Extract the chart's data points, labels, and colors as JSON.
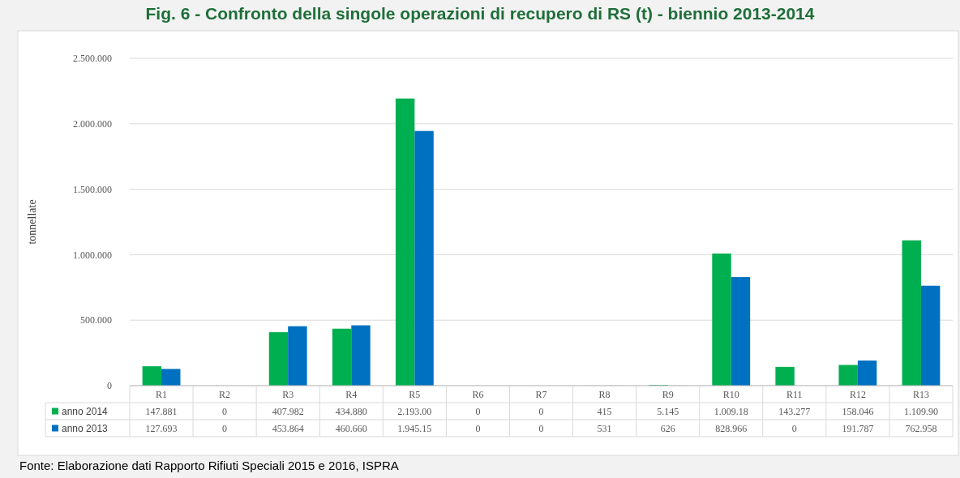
{
  "chart_data": {
    "type": "bar",
    "title": "Fig. 6 - Confronto della singole operazioni di recupero di RS (t) - biennio 2013-2014",
    "ylabel": "tonnellate",
    "categories": [
      "R1",
      "R2",
      "R3",
      "R4",
      "R5",
      "R6",
      "R7",
      "R8",
      "R9",
      "R10",
      "R11",
      "R12",
      "R13"
    ],
    "series": [
      {
        "name": "anno 2014",
        "color": "#00b050",
        "values": [
          147881,
          0,
          407982,
          434880,
          2193000,
          0,
          0,
          415,
          5145,
          1009180,
          143277,
          158046,
          1109900
        ],
        "value_labels": [
          "147.881",
          "0",
          "407.982",
          "434.880",
          "2.193.00",
          "0",
          "0",
          "415",
          "5.145",
          "1.009.18",
          "143.277",
          "158.046",
          "1.109.90"
        ]
      },
      {
        "name": "anno 2013",
        "color": "#0070c0",
        "values": [
          127693,
          0,
          453864,
          460660,
          1945150,
          0,
          0,
          531,
          626,
          828966,
          0,
          191787,
          762958
        ],
        "value_labels": [
          "127.693",
          "0",
          "453.864",
          "460.660",
          "1.945.15",
          "0",
          "0",
          "531",
          "626",
          "828.966",
          "0",
          "191.787",
          "762.958"
        ]
      }
    ],
    "ylim": [
      0,
      2500000
    ],
    "yticks": [
      0,
      {
        "value": 500000,
        "label": "500.000"
      },
      {
        "value": 1000000,
        "label": "1.000.000"
      },
      {
        "value": 1500000,
        "label": "1.500.000"
      },
      {
        "value": 2000000,
        "label": "2.000.000"
      },
      {
        "value": 2500000,
        "label": "2.500.000"
      }
    ],
    "grid": "y",
    "legend": "bottom",
    "annotations": [
      "Fonte: Elaborazione dati Rapporto Rifiuti Speciali 2015 e 2016, ISPRA"
    ]
  }
}
